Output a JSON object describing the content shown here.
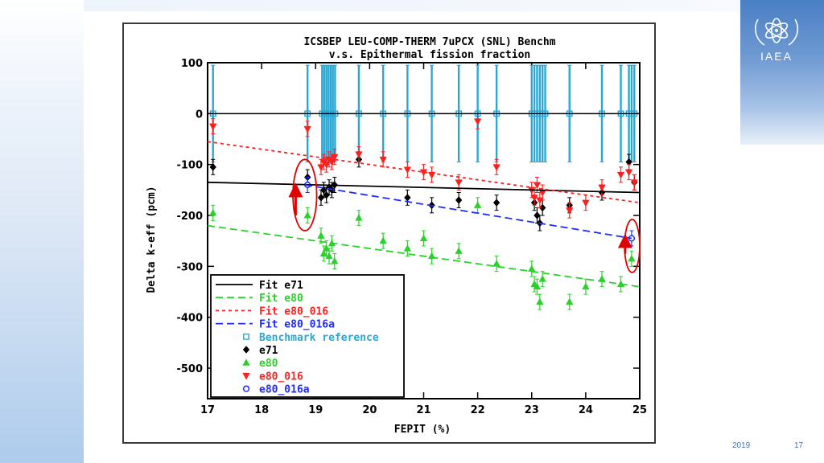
{
  "slide": {
    "logo_text": "IAEA",
    "footer_date": "2019",
    "page_number": "17",
    "accent_color": "#4a7fc4"
  },
  "chart_data": {
    "type": "scatter",
    "title": "ICSBEP LEU-COMP-THERM 7uPCX (SNL) Benchm",
    "subtitle": "v.s. Epithermal fission fraction",
    "xlabel": "FEPIT (%)",
    "ylabel": "Delta k-eff (pcm)",
    "xlim": [
      17,
      25
    ],
    "ylim": [
      -560,
      100
    ],
    "xticks": [
      17,
      18,
      19,
      20,
      21,
      22,
      23,
      24,
      25
    ],
    "yticks": [
      100,
      0,
      -100,
      -200,
      -300,
      -400,
      -500
    ],
    "legend_position": "bottom-left",
    "legend": [
      {
        "label": "Fit e71",
        "kind": "line",
        "color": "#000000",
        "dash": "solid"
      },
      {
        "label": "Fit e80",
        "kind": "line",
        "color": "#2bd12b",
        "dash": "long"
      },
      {
        "label": "Fit e80_016",
        "kind": "line",
        "color": "#ff1f1f",
        "dash": "short"
      },
      {
        "label": "Fit e80_016a",
        "kind": "line",
        "color": "#1f2bff",
        "dash": "long"
      },
      {
        "label": "Benchmark reference",
        "kind": "marker",
        "color": "#29a8d6",
        "marker": "square"
      },
      {
        "label": "e71",
        "kind": "marker",
        "color": "#000000",
        "marker": "diamond"
      },
      {
        "label": "e80",
        "kind": "marker",
        "color": "#2bd12b",
        "marker": "triangle-up"
      },
      {
        "label": "e80_016",
        "kind": "marker",
        "color": "#ff1f1f",
        "marker": "triangle-down"
      },
      {
        "label": "e80_016a",
        "kind": "marker",
        "color": "#1f2bff",
        "marker": "circle"
      }
    ],
    "fits": [
      {
        "name": "Fit e71",
        "color": "#000000",
        "dash": "solid",
        "points": [
          [
            17,
            -135
          ],
          [
            25,
            -155
          ]
        ]
      },
      {
        "name": "Fit e80",
        "color": "#2bd12b",
        "dash": "long",
        "points": [
          [
            17,
            -220
          ],
          [
            25,
            -340
          ]
        ]
      },
      {
        "name": "Fit e80_016",
        "color": "#ff1f1f",
        "dash": "short",
        "points": [
          [
            17,
            -55
          ],
          [
            25,
            -175
          ]
        ]
      },
      {
        "name": "Fit e80_016a",
        "color": "#1f2bff",
        "dash": "long",
        "points": [
          [
            18.8,
            -140
          ],
          [
            24.85,
            -245
          ]
        ]
      }
    ],
    "series": [
      {
        "name": "Benchmark reference",
        "marker": "square",
        "color": "#29a8d6",
        "error": 95,
        "x": [
          17.1,
          18.85,
          19.12,
          19.16,
          19.2,
          19.24,
          19.28,
          19.32,
          19.36,
          19.8,
          20.25,
          20.7,
          21.15,
          21.65,
          22.0,
          22.35,
          23.0,
          23.05,
          23.1,
          23.15,
          23.2,
          23.25,
          23.7,
          24.3,
          24.65,
          24.8,
          24.85,
          24.9
        ],
        "y": [
          0,
          0,
          0,
          0,
          0,
          0,
          0,
          0,
          0,
          0,
          0,
          0,
          0,
          0,
          0,
          0,
          0,
          0,
          0,
          0,
          0,
          0,
          0,
          0,
          0,
          0,
          0,
          0
        ]
      },
      {
        "name": "e71",
        "marker": "diamond",
        "color": "#000000",
        "error": 15,
        "x": [
          17.1,
          18.85,
          19.1,
          19.15,
          19.2,
          19.25,
          19.3,
          19.35,
          19.8,
          20.7,
          21.15,
          21.65,
          22.35,
          23.05,
          23.1,
          23.15,
          23.2,
          23.7,
          24.3,
          24.8,
          24.9
        ],
        "y": [
          -105,
          -125,
          -165,
          -150,
          -160,
          -145,
          -150,
          -140,
          -90,
          -165,
          -180,
          -170,
          -175,
          -175,
          -200,
          -215,
          -185,
          -180,
          -155,
          -95,
          -135
        ]
      },
      {
        "name": "e80",
        "marker": "triangle-up",
        "color": "#2bd12b",
        "error": 15,
        "x": [
          17.1,
          18.85,
          19.1,
          19.15,
          19.2,
          19.25,
          19.3,
          19.35,
          19.8,
          20.25,
          20.7,
          21.0,
          21.15,
          21.65,
          22.0,
          22.35,
          23.0,
          23.05,
          23.1,
          23.15,
          23.2,
          23.7,
          24.0,
          24.3,
          24.65,
          24.85
        ],
        "y": [
          -195,
          -200,
          -240,
          -275,
          -265,
          -280,
          -255,
          -290,
          -205,
          -250,
          -265,
          -245,
          -280,
          -270,
          -180,
          -295,
          -305,
          -335,
          -340,
          -370,
          -325,
          -370,
          -340,
          -325,
          -335,
          -285
        ]
      },
      {
        "name": "e80_016",
        "marker": "triangle-down",
        "color": "#ff1f1f",
        "error": 15,
        "x": [
          17.1,
          18.85,
          19.1,
          19.15,
          19.2,
          19.25,
          19.3,
          19.35,
          19.8,
          20.25,
          20.7,
          21.0,
          21.15,
          21.65,
          22.0,
          22.35,
          23.0,
          23.05,
          23.1,
          23.15,
          23.2,
          23.7,
          24.0,
          24.3,
          24.65,
          24.8,
          24.9
        ],
        "y": [
          -25,
          -30,
          -105,
          -95,
          -100,
          -90,
          -95,
          -85,
          -80,
          -90,
          -110,
          -115,
          -120,
          -135,
          -15,
          -105,
          -150,
          -165,
          -140,
          -170,
          -155,
          -190,
          -175,
          -145,
          -120,
          -115,
          -135
        ]
      },
      {
        "name": "e80_016a",
        "marker": "circle",
        "color": "#1f2bff",
        "error": 15,
        "x": [
          18.85,
          24.85
        ],
        "y": [
          -140,
          -245
        ]
      }
    ],
    "annotations": [
      {
        "kind": "ellipse",
        "color": "#e00000",
        "cx": 18.8,
        "cy": -160,
        "rx": 0.22,
        "ry": 70
      },
      {
        "kind": "arrow",
        "color": "#e00000",
        "x": 18.63,
        "y1": -200,
        "y2": -150
      },
      {
        "kind": "ellipse",
        "color": "#e00000",
        "cx": 24.86,
        "cy": -260,
        "rx": 0.14,
        "ry": 52
      },
      {
        "kind": "arrow",
        "color": "#e00000",
        "x": 24.73,
        "y1": -275,
        "y2": -250
      }
    ]
  }
}
